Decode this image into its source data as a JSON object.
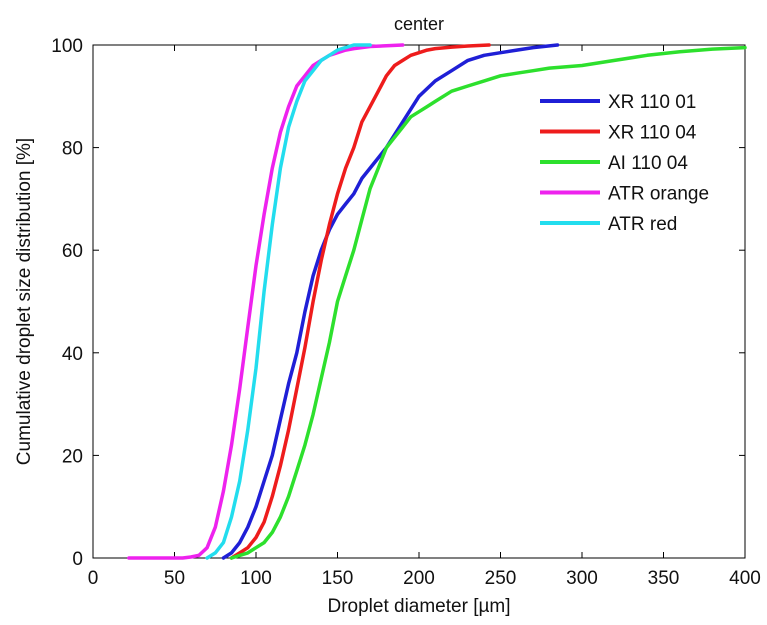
{
  "chart_data": {
    "type": "line",
    "title": "center",
    "xlabel": "Droplet diameter [µm]",
    "ylabel": "Cumulative droplet size distribution [%]",
    "xlim": [
      0,
      400
    ],
    "ylim": [
      0,
      100
    ],
    "xticks": [
      0,
      50,
      100,
      150,
      200,
      250,
      300,
      350,
      400
    ],
    "yticks": [
      0,
      20,
      40,
      60,
      80,
      100
    ],
    "grid": false,
    "legend_position": "top-right",
    "series": [
      {
        "name": "XR 110 01",
        "color": "#1f1fd6",
        "x": [
          80,
          85,
          90,
          95,
          100,
          105,
          110,
          115,
          120,
          125,
          130,
          135,
          140,
          145,
          150,
          155,
          160,
          165,
          170,
          175,
          180,
          190,
          200,
          210,
          220,
          230,
          240,
          250,
          260,
          270,
          285
        ],
        "y": [
          0,
          1,
          3,
          6,
          10,
          15,
          20,
          27,
          34,
          40,
          48,
          55,
          60,
          64,
          67,
          69,
          71,
          74,
          76,
          78,
          80,
          85,
          90,
          93,
          95,
          97,
          98,
          98.5,
          99,
          99.5,
          100
        ]
      },
      {
        "name": "XR 110 04",
        "color": "#ee1c1c",
        "x": [
          85,
          90,
          95,
          100,
          105,
          110,
          115,
          120,
          125,
          130,
          135,
          140,
          145,
          150,
          155,
          160,
          165,
          170,
          175,
          180,
          185,
          190,
          195,
          200,
          205,
          210,
          220,
          230,
          243
        ],
        "y": [
          0,
          1,
          2,
          4,
          7,
          12,
          18,
          25,
          33,
          41,
          50,
          58,
          65,
          71,
          76,
          80,
          85,
          88,
          91,
          94,
          96,
          97,
          98,
          98.5,
          99,
          99.3,
          99.6,
          99.8,
          100
        ]
      },
      {
        "name": "AI 110 04",
        "color": "#2de02d",
        "x": [
          85,
          90,
          95,
          100,
          105,
          110,
          115,
          120,
          125,
          130,
          135,
          140,
          145,
          150,
          155,
          160,
          165,
          170,
          175,
          180,
          185,
          190,
          195,
          200,
          205,
          210,
          220,
          230,
          240,
          250,
          260,
          270,
          280,
          300,
          320,
          340,
          360,
          380,
          400
        ],
        "y": [
          0,
          0.5,
          1,
          2,
          3,
          5,
          8,
          12,
          17,
          22,
          28,
          35,
          42,
          50,
          55,
          60,
          66,
          72,
          76,
          80,
          82,
          84,
          86,
          87,
          88,
          89,
          91,
          92,
          93,
          94,
          94.5,
          95,
          95.5,
          96,
          97,
          98,
          98.7,
          99.2,
          99.5
        ]
      },
      {
        "name": "ATR orange",
        "color": "#ee22ee",
        "x": [
          22,
          40,
          55,
          60,
          65,
          70,
          75,
          80,
          85,
          90,
          95,
          100,
          105,
          110,
          115,
          120,
          125,
          130,
          135,
          140,
          145,
          150,
          155,
          160,
          170,
          190
        ],
        "y": [
          0,
          0,
          0,
          0.2,
          0.5,
          2,
          6,
          13,
          22,
          33,
          45,
          57,
          67,
          76,
          83,
          88,
          92,
          94,
          96,
          97,
          98,
          98.5,
          99,
          99.3,
          99.7,
          100
        ]
      },
      {
        "name": "ATR red",
        "color": "#22ddee",
        "x": [
          70,
          75,
          80,
          85,
          90,
          95,
          100,
          105,
          110,
          115,
          120,
          125,
          130,
          135,
          140,
          145,
          150,
          155,
          160,
          170
        ],
        "y": [
          0,
          1,
          3,
          8,
          15,
          25,
          37,
          52,
          65,
          76,
          84,
          89,
          93,
          95,
          97,
          98,
          99,
          99.5,
          100,
          100
        ]
      }
    ]
  }
}
